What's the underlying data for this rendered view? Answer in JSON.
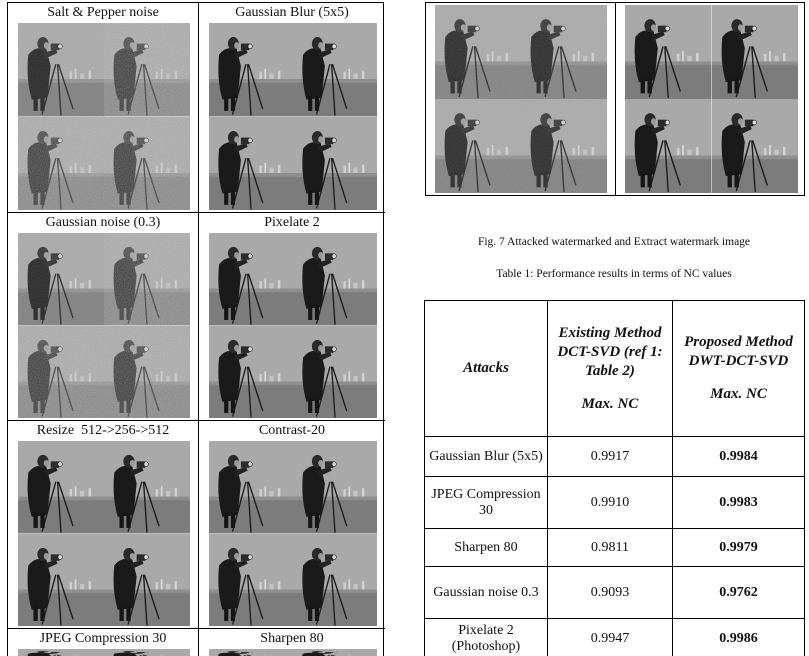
{
  "left_figure": {
    "cells": [
      {
        "title": "Salt & Pepper noise",
        "variant": "noise"
      },
      {
        "title": "Gaussian Blur (5x5)",
        "variant": "clean"
      },
      {
        "title": "Gaussian noise (0.3)",
        "variant": "noise"
      },
      {
        "title": "Pixelate 2",
        "variant": "clean"
      },
      {
        "title": "Resize  512->256->512",
        "variant": "clean"
      },
      {
        "title": "Contrast-20",
        "variant": "clean"
      },
      {
        "title": "JPEG Compression 30",
        "variant": "clean"
      },
      {
        "title": "Sharpen 80",
        "variant": "clean"
      }
    ]
  },
  "right_figure": {
    "panels": [
      {
        "variant": "noise-light"
      },
      {
        "variant": "clean"
      }
    ]
  },
  "fig_caption": "Fig. 7  Attacked watermarked and Extract watermark image",
  "table_caption": "Table 1: Performance results in terms of NC values",
  "table": {
    "headers": [
      {
        "top": "Attacks",
        "bottom": ""
      },
      {
        "top": "Existing Method DCT-SVD (ref 1: Table 2)",
        "bottom": "Max. NC"
      },
      {
        "top": "Proposed Method DWT-DCT-SVD",
        "bottom": "Max. NC"
      }
    ],
    "rows": [
      [
        "Gaussian Blur (5x5)",
        "0.9917",
        "0.9984"
      ],
      [
        "JPEG Compression 30",
        "0.9910",
        "0.9983"
      ],
      [
        "Sharpen 80",
        "0.9811",
        "0.9979"
      ],
      [
        "Gaussian noise 0.3",
        "0.9093",
        "0.9762"
      ],
      [
        "Pixelate 2 (Photoshop)",
        "0.9947",
        "0.9986"
      ]
    ]
  }
}
